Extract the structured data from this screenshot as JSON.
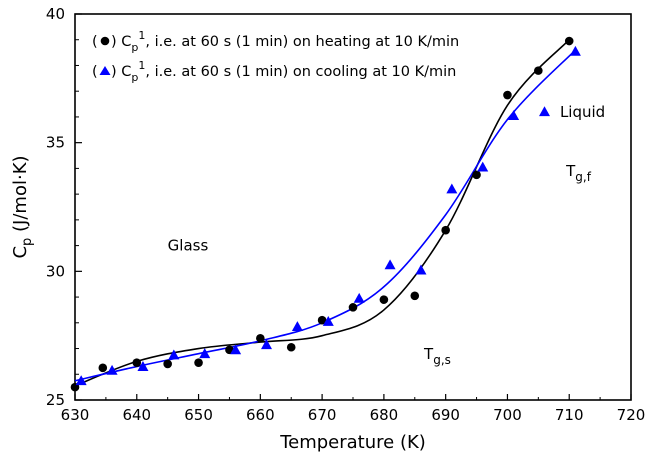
{
  "chart_data": {
    "type": "scatter",
    "title": "",
    "xlabel": "Temperature (K)",
    "ylabel": {
      "base": "C",
      "sub": "p",
      "rest": " (J/mol·K)"
    },
    "xlim": [
      630,
      720
    ],
    "ylim": [
      25,
      40
    ],
    "xticks": [
      630,
      640,
      650,
      660,
      670,
      680,
      690,
      700,
      710,
      720
    ],
    "yticks": [
      25,
      30,
      35,
      40
    ],
    "grid": false,
    "legend_position": "top-left",
    "series": [
      {
        "name": "heating",
        "legend": {
          "open": "(",
          "base": "C",
          "sub": "p",
          "sup": "1",
          "rest": ", i.e. at 60 s (1 min) on heating at 10 K/min"
        },
        "marker": "circle",
        "color": "#000000",
        "x": [
          630,
          634.5,
          640,
          645,
          650,
          655,
          660,
          665,
          670,
          675,
          680,
          685,
          690,
          695,
          700,
          705,
          710
        ],
        "y": [
          25.5,
          26.25,
          26.45,
          26.4,
          26.45,
          26.95,
          27.4,
          27.05,
          28.1,
          28.6,
          28.9,
          29.05,
          31.6,
          33.75,
          36.85,
          37.8,
          38.95
        ],
        "fit_x": [
          630,
          640,
          650,
          660,
          670,
          680,
          690,
          700,
          710
        ],
        "fit_y": [
          25.55,
          26.5,
          27.0,
          27.25,
          27.5,
          28.5,
          31.6,
          36.45,
          39.0
        ]
      },
      {
        "name": "cooling",
        "legend": {
          "open": "(",
          "base": "C",
          "sub": "p",
          "sup": "1",
          "rest": ", i.e. at 60 s (1 min) on cooling at 10 K/min"
        },
        "marker": "triangle",
        "color": "#0000ff",
        "x": [
          631,
          636,
          641,
          646,
          651,
          656,
          661,
          666,
          671,
          676,
          681,
          686,
          691,
          696,
          701,
          706,
          711
        ],
        "y": [
          25.75,
          26.15,
          26.3,
          26.75,
          26.8,
          26.95,
          27.15,
          27.85,
          28.05,
          28.95,
          30.25,
          30.05,
          33.2,
          34.05,
          36.05,
          36.2,
          38.55
        ],
        "fit_x": [
          630,
          640,
          650,
          660,
          670,
          680,
          690,
          700,
          711
        ],
        "fit_y": [
          25.75,
          26.3,
          26.8,
          27.3,
          28.0,
          29.4,
          32.2,
          35.9,
          38.6
        ]
      }
    ],
    "annotations": [
      {
        "id": "glass",
        "text": "Glass",
        "x": 645,
        "y": 30.8
      },
      {
        "id": "liquid",
        "text": "Liquid",
        "x": 708.5,
        "y": 36.0
      },
      {
        "id": "tgf",
        "base": "T",
        "sub": "g,f",
        "x": 709.5,
        "y": 33.7
      },
      {
        "id": "tgs",
        "base": "T",
        "sub": "g,s",
        "x": 686.5,
        "y": 26.6
      }
    ]
  }
}
